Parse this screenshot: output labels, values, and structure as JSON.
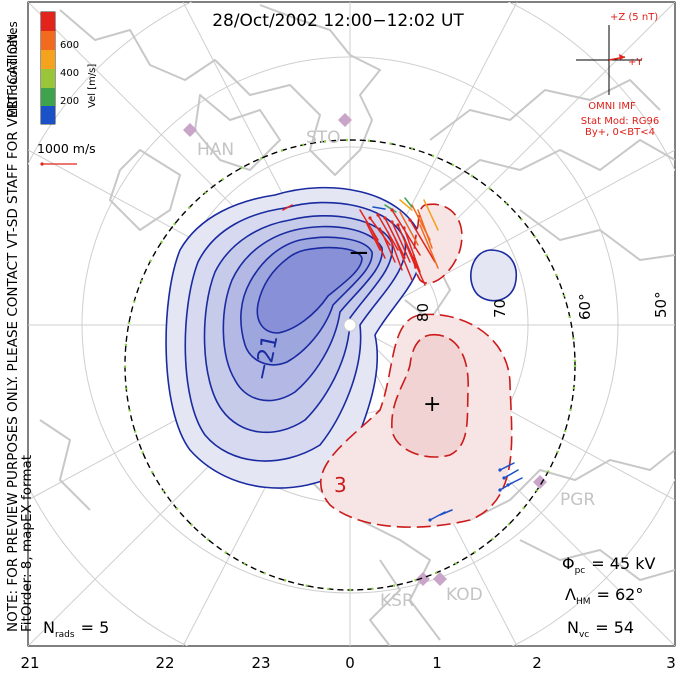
{
  "title": "28/Oct/2002 12:00−12:02 UT",
  "colorbar": {
    "ticks": [
      "600",
      "400",
      "200"
    ],
    "label": "Vel [m/s]",
    "colors": [
      "#e2241c",
      "#f26a1e",
      "#f5a21d",
      "#9ac43a",
      "#3fa24c",
      "#1a50c8"
    ]
  },
  "side_labels": {
    "coordinates": "MLT coordinates",
    "note": "NOTE: FOR PREVIEW PURPOSES ONLY. PLEASE CONTACT VT-SD STAFF FOR VERIFICATION.",
    "fit": "FitOrder: 8, mapEX format"
  },
  "vector_scale": "1000 m/s",
  "imf": {
    "z_label": "+Z (5 nT)",
    "y_label": "+Y",
    "source": "OMNI IMF",
    "model": "Stat Mod: RG96",
    "condition": "By+, 0<BT<4"
  },
  "stations": [
    "HAN",
    "STO",
    "PGR",
    "KSR",
    "KOD"
  ],
  "lat_labels": [
    "80",
    "70",
    "60°",
    "50°"
  ],
  "contour_labels": {
    "neg": "−21",
    "pos": "3"
  },
  "minimum_marker": "−",
  "maximum_marker": "+",
  "stats": {
    "phi_pc": {
      "symbol": "Φ",
      "sub": "pc",
      "value": "= 45 kV"
    },
    "lambda_hm": {
      "symbol": "Λ",
      "sub": "HM",
      "value": "= 62°"
    },
    "n_vc": {
      "symbol": "N",
      "sub": "vc",
      "value": "= 54"
    },
    "n_rads": {
      "symbol": "N",
      "sub": "rads",
      "value": "= 5"
    }
  },
  "mlt_ticks": [
    "21",
    "22",
    "23",
    "0",
    "1",
    "2",
    "3"
  ],
  "colors": {
    "negative": "#1a2aa0",
    "positive": "#cc1b1b",
    "land": "#cfcfcf"
  }
}
